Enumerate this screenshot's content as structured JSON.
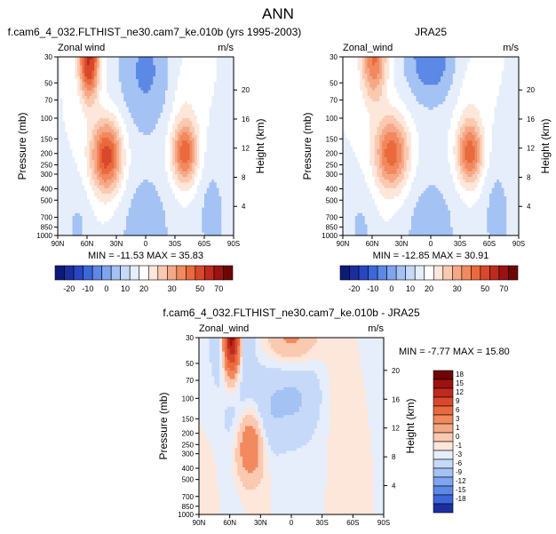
{
  "page_title": "ANN",
  "colors": {
    "pos": [
      "#fde6da",
      "#f9c9b0",
      "#f5a886",
      "#f2895f",
      "#ea6a3d",
      "#d9482b",
      "#bf2a1f",
      "#9d1210",
      "#6f0606"
    ],
    "neg": [
      "#e6eefb",
      "#c7d9f8",
      "#a4c2f3",
      "#7fa5ee",
      "#5c88e6",
      "#3d66dc",
      "#2846c4",
      "#1a2ea0",
      "#0d1a78"
    ],
    "white": "#ffffff"
  },
  "chart_data": [
    {
      "type": "heatmap",
      "id": "model",
      "title": "f.cam6_4_032.FLTHIST_ne30.cam7_ke.010b (yrs 1995-2003)",
      "left_label": "Zonal wind",
      "right_label": "m/s",
      "ylabel": "Pressure (mb)",
      "y2label": "Height (km)",
      "x_ticks": [
        "90N",
        "60N",
        "30N",
        "0",
        "30S",
        "60S",
        "90S"
      ],
      "y_ticks": [
        "30",
        "50",
        "70",
        "100",
        "150",
        "200",
        "250",
        "300",
        "400",
        "500",
        "700",
        "850",
        "1000"
      ],
      "y2_ticks": [
        "20",
        "16",
        "12",
        "8",
        "4"
      ],
      "stats": "MIN = -11.53   MAX = 35.83",
      "x_range": [
        -90,
        90
      ],
      "y_range_mb": [
        30,
        1000
      ],
      "contour_levels": [
        -20,
        -10,
        0,
        10,
        20,
        30,
        50,
        70
      ],
      "colorbar_labels": [
        "-20",
        "-10",
        "0",
        "10",
        "20",
        "30",
        "50",
        "70"
      ]
    },
    {
      "type": "heatmap",
      "id": "obs",
      "title": "JRA25",
      "left_label": "Zonal_wind",
      "right_label": "m/s",
      "ylabel": "Pressure (mb)",
      "y2label": "Height (km)",
      "x_ticks": [
        "90N",
        "60N",
        "30N",
        "0",
        "30S",
        "60S",
        "90S"
      ],
      "y_ticks": [
        "30",
        "50",
        "70",
        "100",
        "150",
        "200",
        "250",
        "300",
        "400",
        "500",
        "700",
        "850",
        "1000"
      ],
      "y2_ticks": [
        "20",
        "16",
        "12",
        "8",
        "4"
      ],
      "stats": "MIN = -12.85   MAX = 30.91",
      "x_range": [
        -90,
        90
      ],
      "y_range_mb": [
        30,
        1000
      ],
      "contour_levels": [
        -20,
        -10,
        0,
        10,
        20,
        30,
        50,
        70
      ],
      "colorbar_labels": [
        "-20",
        "-10",
        "0",
        "10",
        "20",
        "30",
        "50",
        "70"
      ]
    },
    {
      "type": "heatmap",
      "id": "diff",
      "title": "f.cam6_4_032.FLTHIST_ne30.cam7_ke.010b - JRA25",
      "left_label": "Zonal_wind",
      "right_label": "m/s",
      "ylabel": "Pressure (mb)",
      "y2label": "Height (km)",
      "x_ticks": [
        "90N",
        "60N",
        "30N",
        "0",
        "30S",
        "60S",
        "90S"
      ],
      "y_ticks": [
        "30",
        "50",
        "70",
        "100",
        "150",
        "200",
        "250",
        "300",
        "400",
        "500",
        "700",
        "850",
        "1000"
      ],
      "y2_ticks": [
        "20",
        "16",
        "12",
        "8",
        "4"
      ],
      "stats": "MIN = -7.77   MAX = 15.80",
      "x_range": [
        -90,
        90
      ],
      "y_range_mb": [
        30,
        1000
      ],
      "contour_levels": [
        -18,
        -15,
        -12,
        -9,
        -6,
        -3,
        -1,
        0,
        1,
        3,
        6,
        9,
        12,
        15,
        18
      ],
      "colorbar_labels": [
        "18",
        "15",
        "12",
        "9",
        "6",
        "3",
        "1",
        "0",
        "-1",
        "-3",
        "-6",
        "-9",
        "-12",
        "-15",
        "-18"
      ]
    }
  ]
}
